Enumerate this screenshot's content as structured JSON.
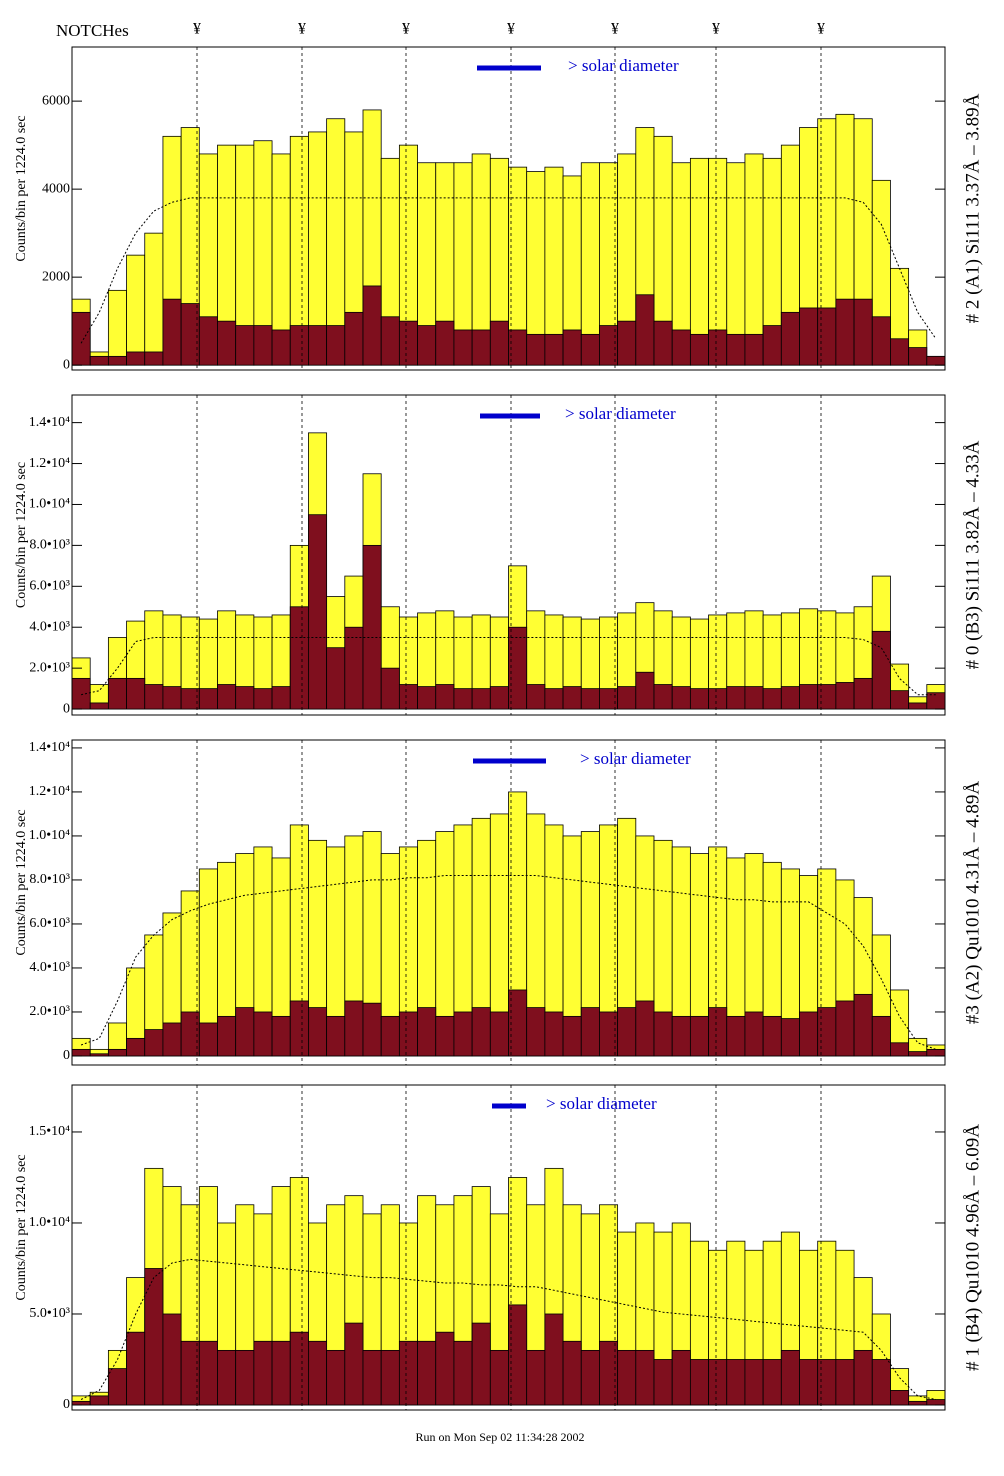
{
  "header": {
    "label": "NOTCHes",
    "notches": [
      "¥",
      "¥",
      "¥",
      "¥",
      "¥",
      "¥",
      "¥"
    ]
  },
  "footer": "Run on Mon Sep 02 11:34:28 2002",
  "chart_data": [
    {
      "type": "histogram",
      "title": "# 2 (A1) Si111  3.37Å – 3.89Å",
      "y_label": "Counts/bin per   1224.0 sec",
      "annotation": "> solar diameter",
      "categories": [
        null,
        null,
        null,
        null,
        null,
        null,
        null,
        null,
        null,
        null,
        null,
        null,
        null,
        null,
        null,
        null,
        null,
        null,
        null,
        null,
        null,
        null,
        null,
        null,
        null,
        null,
        null,
        null,
        null,
        null,
        null,
        null,
        null,
        null,
        null,
        null,
        null,
        null,
        null,
        null,
        null,
        null,
        null,
        null,
        null,
        null,
        null,
        null
      ],
      "ylim": [
        -110,
        7230
      ],
      "yticks": [
        0,
        2000,
        4000,
        6000
      ],
      "series": [
        {
          "color": "#ffff33",
          "values": [
            1500,
            300,
            1700,
            2500,
            3000,
            5200,
            5400,
            4800,
            5000,
            5000,
            5100,
            4800,
            5200,
            5300,
            5600,
            5300,
            5800,
            4700,
            5000,
            4600,
            4600,
            4600,
            4800,
            4700,
            4500,
            4400,
            4500,
            4300,
            4600,
            4600,
            4800,
            5400,
            5200,
            4600,
            4700,
            4700,
            4600,
            4800,
            4700,
            5000,
            5400,
            5600,
            5700,
            5600,
            4200,
            2200,
            800,
            200
          ]
        },
        {
          "color": "#7f0f1e",
          "values": [
            1200,
            200,
            200,
            300,
            300,
            1500,
            1400,
            1100,
            1000,
            900,
            900,
            800,
            900,
            900,
            900,
            1200,
            1800,
            1100,
            1000,
            900,
            1000,
            800,
            800,
            1000,
            800,
            700,
            700,
            800,
            700,
            900,
            1000,
            1600,
            1000,
            800,
            700,
            800,
            700,
            700,
            900,
            1200,
            1300,
            1300,
            1500,
            1500,
            1100,
            600,
            400,
            200
          ]
        }
      ],
      "model": [
        500,
        1200,
        2200,
        3000,
        3500,
        3700,
        3800,
        3800,
        3800,
        3800,
        3800,
        3800,
        3800,
        3800,
        3800,
        3800,
        3800,
        3800,
        3800,
        3800,
        3800,
        3800,
        3800,
        3800,
        3800,
        3800,
        3800,
        3800,
        3800,
        3800,
        3800,
        3800,
        3800,
        3800,
        3800,
        3800,
        3800,
        3800,
        3800,
        3800,
        3800,
        3800,
        3800,
        3700,
        3200,
        2200,
        1200,
        600
      ]
    },
    {
      "type": "histogram",
      "title": "# 0 (B3) Si111  3.82Å – 4.33Å",
      "y_label": "Counts/bin per   1224.0 sec",
      "annotation": "> solar diameter",
      "categories": [
        null,
        null,
        null,
        null,
        null,
        null,
        null,
        null,
        null,
        null,
        null,
        null,
        null,
        null,
        null,
        null,
        null,
        null,
        null,
        null,
        null,
        null,
        null,
        null,
        null,
        null,
        null,
        null,
        null,
        null,
        null,
        null,
        null,
        null,
        null,
        null,
        null,
        null,
        null,
        null,
        null,
        null,
        null,
        null,
        null,
        null,
        null,
        null
      ],
      "ylim": [
        -290,
        15350
      ],
      "yticks": [
        0,
        {
          "value": 2000,
          "label": "2.0•10³"
        },
        {
          "value": 4000,
          "label": "4.0•10³"
        },
        {
          "value": 6000,
          "label": "6.0•10³"
        },
        {
          "value": 8000,
          "label": "8.0•10³"
        },
        {
          "value": 10000,
          "label": "1.0•10⁴"
        },
        {
          "value": 12000,
          "label": "1.2•10⁴"
        },
        {
          "value": 14000,
          "label": "1.4•10⁴"
        }
      ],
      "series": [
        {
          "color": "#ffff33",
          "values": [
            2500,
            1200,
            3500,
            4300,
            4800,
            4600,
            4500,
            4400,
            4800,
            4600,
            4500,
            4600,
            8000,
            13500,
            5500,
            6500,
            11500,
            5000,
            4500,
            4700,
            4800,
            4500,
            4600,
            4500,
            7000,
            4800,
            4600,
            4500,
            4400,
            4500,
            4700,
            5200,
            4800,
            4500,
            4400,
            4600,
            4700,
            4800,
            4600,
            4700,
            4900,
            4800,
            4700,
            5000,
            6500,
            2200,
            600,
            1200
          ]
        },
        {
          "color": "#7f0f1e",
          "values": [
            1500,
            300,
            1500,
            1500,
            1200,
            1100,
            1000,
            1000,
            1200,
            1100,
            1000,
            1100,
            5000,
            9500,
            3000,
            4000,
            8000,
            2000,
            1200,
            1100,
            1200,
            1000,
            1000,
            1100,
            4000,
            1200,
            1000,
            1100,
            1000,
            1000,
            1100,
            1800,
            1200,
            1100,
            1000,
            1000,
            1100,
            1100,
            1000,
            1100,
            1200,
            1200,
            1300,
            1500,
            3800,
            900,
            300,
            800
          ]
        }
      ],
      "model": [
        700,
        900,
        2000,
        3300,
        3500,
        3500,
        3500,
        3500,
        3500,
        3500,
        3500,
        3500,
        3500,
        3500,
        3500,
        3500,
        3500,
        3500,
        3500,
        3500,
        3500,
        3500,
        3500,
        3500,
        3500,
        3500,
        3500,
        3500,
        3500,
        3500,
        3500,
        3500,
        3500,
        3500,
        3500,
        3500,
        3500,
        3500,
        3500,
        3500,
        3500,
        3500,
        3500,
        3400,
        3000,
        1500,
        700,
        700
      ]
    },
    {
      "type": "histogram",
      "title": "#3 (A2) Qu1010  4.31Å – 4.89Å",
      "y_label": "Counts/bin per   1224.0 sec",
      "annotation": "> solar diameter",
      "categories": [
        null,
        null,
        null,
        null,
        null,
        null,
        null,
        null,
        null,
        null,
        null,
        null,
        null,
        null,
        null,
        null,
        null,
        null,
        null,
        null,
        null,
        null,
        null,
        null,
        null,
        null,
        null,
        null,
        null,
        null,
        null,
        null,
        null,
        null,
        null,
        null,
        null,
        null,
        null,
        null,
        null,
        null,
        null,
        null,
        null,
        null,
        null,
        null
      ],
      "ylim": [
        -410,
        14360
      ],
      "yticks": [
        0,
        {
          "value": 2000,
          "label": "2.0•10³"
        },
        {
          "value": 4000,
          "label": "4.0•10³"
        },
        {
          "value": 6000,
          "label": "6.0•10³"
        },
        {
          "value": 8000,
          "label": "8.0•10³"
        },
        {
          "value": 10000,
          "label": "1.0•10⁴"
        },
        {
          "value": 12000,
          "label": "1.2•10⁴"
        },
        {
          "value": 14000,
          "label": "1.4•10⁴"
        }
      ],
      "series": [
        {
          "color": "#ffff33",
          "values": [
            800,
            300,
            1500,
            4000,
            5500,
            6500,
            7500,
            8500,
            8800,
            9200,
            9500,
            9000,
            10500,
            9800,
            9500,
            10000,
            10200,
            9200,
            9500,
            9800,
            10200,
            10500,
            10800,
            11000,
            12000,
            11000,
            10500,
            10000,
            10200,
            10500,
            10800,
            10000,
            9800,
            9500,
            9200,
            9500,
            9000,
            9200,
            8800,
            8500,
            8200,
            8500,
            8000,
            7200,
            5500,
            3000,
            800,
            500
          ]
        },
        {
          "color": "#7f0f1e",
          "values": [
            300,
            100,
            300,
            800,
            1200,
            1500,
            2000,
            1500,
            1800,
            2200,
            2000,
            1800,
            2500,
            2200,
            1800,
            2500,
            2400,
            1800,
            2000,
            2200,
            1800,
            2000,
            2200,
            2000,
            3000,
            2200,
            2000,
            1800,
            2200,
            2000,
            2200,
            2500,
            2000,
            1800,
            1800,
            2200,
            1800,
            2000,
            1800,
            1700,
            2000,
            2200,
            2500,
            2800,
            1800,
            600,
            200,
            300
          ]
        }
      ],
      "model": [
        500,
        800,
        2500,
        4500,
        5500,
        6200,
        6600,
        6900,
        7100,
        7300,
        7400,
        7500,
        7600,
        7700,
        7800,
        7900,
        8000,
        8000,
        8100,
        8100,
        8200,
        8200,
        8200,
        8200,
        8200,
        8200,
        8100,
        8000,
        7900,
        7800,
        7700,
        7600,
        7500,
        7400,
        7300,
        7200,
        7100,
        7100,
        7000,
        7000,
        7000,
        6500,
        6000,
        5000,
        3500,
        1800,
        600,
        300
      ]
    },
    {
      "type": "histogram",
      "title": "# 1 (B4) Qu1010 4.96Å – 6.09Å",
      "y_label": "Counts/bin per   1224.0 sec",
      "annotation": "> solar diameter",
      "categories": [
        null,
        null,
        null,
        null,
        null,
        null,
        null,
        null,
        null,
        null,
        null,
        null,
        null,
        null,
        null,
        null,
        null,
        null,
        null,
        null,
        null,
        null,
        null,
        null,
        null,
        null,
        null,
        null,
        null,
        null,
        null,
        null,
        null,
        null,
        null,
        null,
        null,
        null,
        null,
        null,
        null,
        null,
        null,
        null,
        null,
        null,
        null,
        null
      ],
      "ylim": [
        -275,
        17580
      ],
      "yticks": [
        0,
        {
          "value": 5000,
          "label": "5.0•10³"
        },
        {
          "value": 10000,
          "label": "1.0•10⁴"
        },
        {
          "value": 15000,
          "label": "1.5•10⁴"
        }
      ],
      "series": [
        {
          "color": "#ffff33",
          "values": [
            500,
            700,
            3000,
            7000,
            13000,
            12000,
            11000,
            12000,
            10000,
            11000,
            10500,
            12000,
            12500,
            10000,
            11000,
            11500,
            10500,
            11000,
            10000,
            11500,
            11000,
            11500,
            12000,
            10500,
            12500,
            11000,
            13000,
            11000,
            10500,
            11000,
            9500,
            10000,
            9500,
            10000,
            9000,
            8500,
            9000,
            8500,
            9000,
            9500,
            8500,
            9000,
            8500,
            7000,
            5000,
            2000,
            500,
            800
          ]
        },
        {
          "color": "#7f0f1e",
          "values": [
            200,
            500,
            2000,
            4000,
            7500,
            5000,
            3500,
            3500,
            3000,
            3000,
            3500,
            3500,
            4000,
            3500,
            3000,
            4500,
            3000,
            3000,
            3500,
            3500,
            4000,
            3500,
            4500,
            3000,
            5500,
            3000,
            5000,
            3500,
            3000,
            3500,
            3000,
            3000,
            2500,
            3000,
            2500,
            2500,
            2500,
            2500,
            2500,
            3000,
            2500,
            2500,
            2500,
            3000,
            2500,
            800,
            200,
            300
          ]
        }
      ],
      "model": [
        300,
        800,
        2500,
        5000,
        7000,
        7800,
        8000,
        7900,
        7800,
        7700,
        7600,
        7500,
        7400,
        7300,
        7200,
        7100,
        7000,
        7000,
        6900,
        6800,
        6700,
        6700,
        6600,
        6600,
        6500,
        6500,
        6300,
        6100,
        5900,
        5700,
        5500,
        5300,
        5100,
        5000,
        4900,
        4800,
        4700,
        4600,
        4500,
        4400,
        4300,
        4200,
        4100,
        4000,
        3000,
        1500,
        500,
        300
      ]
    }
  ]
}
